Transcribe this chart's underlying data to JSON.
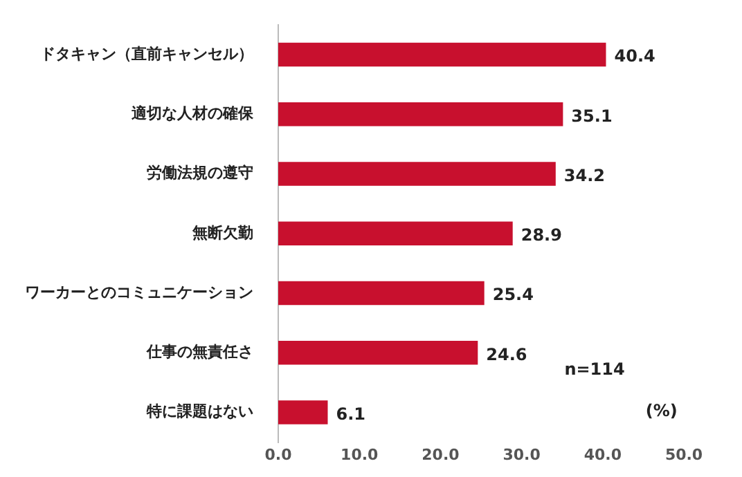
{
  "chart_data": {
    "type": "bar",
    "orientation": "horizontal",
    "categories": [
      "ドタキャン（直前キャンセル）",
      "適切な人材の確保",
      "労働法規の遵守",
      "無断欠勤",
      "ワーカーとのコミュニケーション",
      "仕事の無責任さ",
      "特に課題はない"
    ],
    "values": [
      40.4,
      35.1,
      34.2,
      28.9,
      25.4,
      24.6,
      6.1
    ],
    "color": "#c8102e",
    "xlim": [
      0,
      50
    ],
    "xticks": [
      {
        "value": 0,
        "label": "0.0"
      },
      {
        "value": 10,
        "label": "10.0"
      },
      {
        "value": 20,
        "label": "20.0"
      },
      {
        "value": 30,
        "label": "30.0"
      },
      {
        "value": 40,
        "label": "40.0"
      },
      {
        "value": 50,
        "label": "50.0"
      }
    ],
    "data_labels": true,
    "grid": false,
    "legend": false,
    "annotations": [
      "n=114",
      "(%)"
    ]
  }
}
